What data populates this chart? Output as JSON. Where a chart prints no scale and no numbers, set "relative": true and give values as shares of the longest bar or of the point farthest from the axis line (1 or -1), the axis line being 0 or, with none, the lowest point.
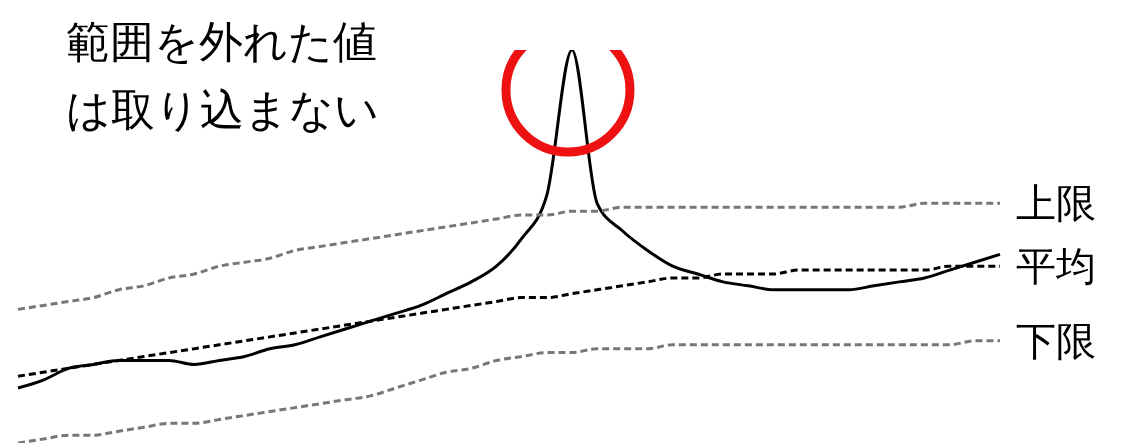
{
  "chart_data": {
    "type": "line",
    "relative": true,
    "categories": [
      null,
      null,
      null,
      null,
      null,
      null,
      null,
      null,
      null,
      null,
      null,
      null,
      null,
      null,
      null,
      null,
      null,
      null,
      null,
      null,
      null,
      null,
      null,
      null,
      null,
      null,
      null,
      null,
      null,
      null,
      null,
      null,
      null,
      null,
      null,
      null,
      null,
      null,
      null,
      null
    ],
    "series": [
      {
        "color": "#000000",
        "line_style": "solid",
        "values": [
          0.14,
          0.16,
          0.19,
          0.2,
          0.21,
          0.21,
          0.21,
          0.2,
          0.21,
          0.22,
          0.24,
          0.25,
          0.27,
          0.29,
          0.31,
          0.33,
          0.35,
          0.38,
          0.41,
          0.45,
          0.52,
          0.63,
          1,
          0.61,
          0.54,
          0.49,
          0.45,
          0.43,
          0.41,
          0.4,
          0.39,
          0.39,
          0.39,
          0.39,
          0.4,
          0.41,
          0.42,
          0.44,
          0.46,
          0.48
        ]
      },
      {
        "name": "上限",
        "color": "#777777",
        "line_style": "dashed",
        "values": [
          0.34,
          0.35,
          0.36,
          0.37,
          0.39,
          0.4,
          0.42,
          0.43,
          0.45,
          0.46,
          0.47,
          0.49,
          0.5,
          0.51,
          0.52,
          0.53,
          0.54,
          0.55,
          0.56,
          0.57,
          0.58,
          0.58,
          0.59,
          0.59,
          0.6,
          0.6,
          0.6,
          0.6,
          0.6,
          0.6,
          0.6,
          0.6,
          0.6,
          0.6,
          0.6,
          0.6,
          0.61,
          0.61,
          0.61,
          0.61
        ]
      },
      {
        "name": "平均",
        "color": "#000000",
        "line_style": "dashed",
        "values": [
          0.17,
          0.18,
          0.19,
          0.2,
          0.21,
          0.22,
          0.23,
          0.24,
          0.25,
          0.26,
          0.27,
          0.28,
          0.29,
          0.3,
          0.31,
          0.32,
          0.33,
          0.34,
          0.35,
          0.36,
          0.37,
          0.37,
          0.38,
          0.39,
          0.4,
          0.41,
          0.42,
          0.42,
          0.43,
          0.43,
          0.43,
          0.44,
          0.44,
          0.44,
          0.44,
          0.44,
          0.44,
          0.45,
          0.45,
          0.45
        ]
      },
      {
        "name": "下限",
        "color": "#777777",
        "line_style": "dashed",
        "values": [
          0,
          0.01,
          0.02,
          0.02,
          0.03,
          0.04,
          0.05,
          0.05,
          0.06,
          0.07,
          0.08,
          0.09,
          0.1,
          0.11,
          0.12,
          0.14,
          0.16,
          0.18,
          0.19,
          0.21,
          0.22,
          0.23,
          0.23,
          0.24,
          0.24,
          0.24,
          0.25,
          0.25,
          0.25,
          0.25,
          0.25,
          0.25,
          0.25,
          0.25,
          0.25,
          0.25,
          0.25,
          0.25,
          0.26,
          0.26
        ]
      }
    ],
    "annotations": [
      "範囲を外れた値は取り込まない"
    ]
  }
}
